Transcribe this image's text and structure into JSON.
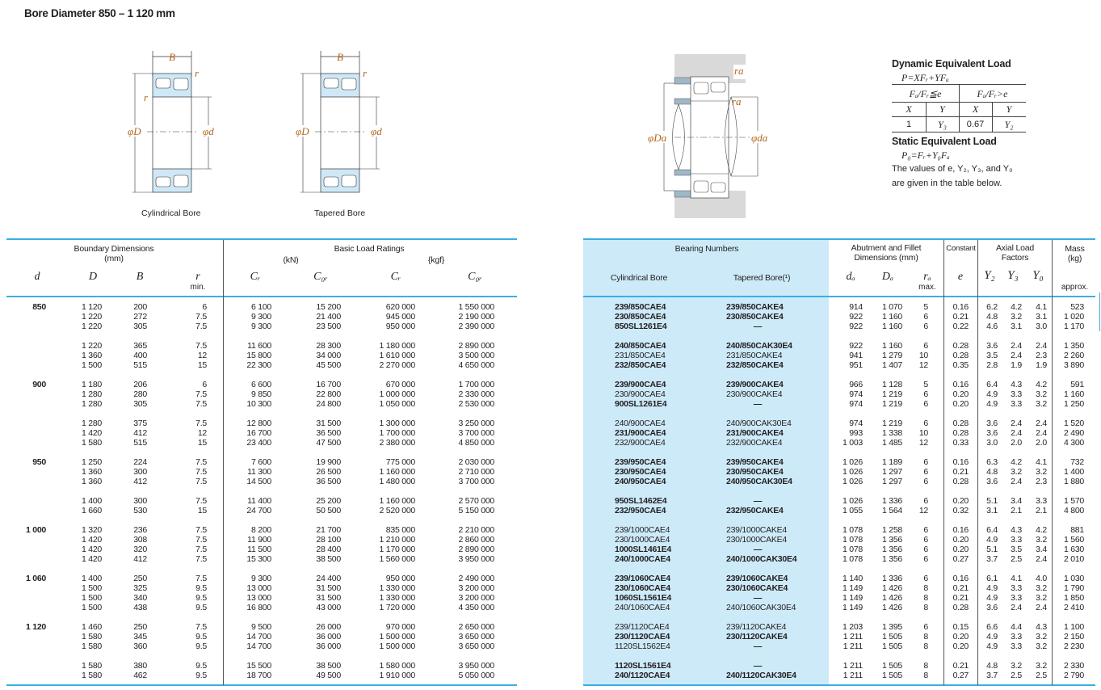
{
  "page_title": "Bore Diameter  850 – 1 120 mm",
  "figures": {
    "cylindrical": {
      "caption": "Cylindrical Bore",
      "B": "B",
      "r": "r",
      "D": "φD",
      "d": "φd"
    },
    "tapered": {
      "caption": "Tapered Bore",
      "B": "B",
      "r": "r",
      "D": "φD",
      "d": "φd"
    },
    "mounting": {
      "Da": "φDa",
      "da": "φda",
      "ra": "ra"
    }
  },
  "load_box": {
    "dynamic_title": "Dynamic Equivalent Load",
    "dynamic_formula": "P=XFᵣ+YFₐ",
    "cond1": "Fₐ/Fᵣ≦e",
    "cond2": "Fₐ/Fᵣ>e",
    "x1": "X",
    "y1": "Y",
    "x2": "X",
    "y2": "Y",
    "v_x1": "1",
    "v_y1": "Y₃",
    "v_x2": "0.67",
    "v_y2": "Y₂",
    "static_title": "Static Equivalent Load",
    "static_formula": "P₀=Fᵣ+Y₀Fₐ",
    "note1": "The values of e, Y₂, Y₃, and Y₀",
    "note2": "are given in the table below."
  },
  "left_header": {
    "boundary": "Boundary Dimensions",
    "boundary_unit": "(mm)",
    "ratings": "Basic Load Ratings",
    "kn": "(kN)",
    "kgf": "{kgf}",
    "d": "d",
    "D": "D",
    "B": "B",
    "r": "r",
    "r_min": "min.",
    "Cr1": "Cᵣ",
    "C0r1": "C₀ᵣ",
    "Cr2": "Cᵣ",
    "C0r2": "C₀ᵣ"
  },
  "right_header": {
    "bearing_numbers": "Bearing Numbers",
    "cyl": "Cylindrical Bore",
    "tap": "Tapered Bore(¹)",
    "abutment1": "Abutment and Fillet",
    "abutment2": "Dimensions (mm)",
    "constant": "Constant",
    "axial1": "Axial Load",
    "axial2": "Factors",
    "mass1": "Mass",
    "mass2": "(kg)",
    "da": "dₐ",
    "Da": "Dₐ",
    "ra": "rₐ",
    "ra_max": "max.",
    "e": "e",
    "Y2": "Y₂",
    "Y3": "Y₃",
    "Y0": "Y₀",
    "approx": "approx."
  },
  "groups": [
    {
      "d": "850",
      "subgroups": [
        [
          {
            "D": "1 120",
            "B": "200",
            "r": "6",
            "Cr": "6 100",
            "C0r": "15 200",
            "Cr_kgf": "620 000",
            "C0r_kgf": "1 550 000",
            "cyl": "239/850CAE4",
            "tap": "239/850CAKE4",
            "bold": true,
            "da": "914",
            "Da": "1 070",
            "ra": "5",
            "e": "0.16",
            "Y2": "6.2",
            "Y3": "4.2",
            "Y0": "4.1",
            "mass": "523"
          },
          {
            "D": "1 220",
            "B": "272",
            "r": "7.5",
            "Cr": "9 300",
            "C0r": "21 400",
            "Cr_kgf": "945 000",
            "C0r_kgf": "2 190 000",
            "cyl": "230/850CAE4",
            "tap": "230/850CAKE4",
            "bold": true,
            "da": "922",
            "Da": "1 160",
            "ra": "6",
            "e": "0.21",
            "Y2": "4.8",
            "Y3": "3.2",
            "Y0": "3.1",
            "mass": "1 020"
          },
          {
            "D": "1 220",
            "B": "305",
            "r": "7.5",
            "Cr": "9 300",
            "C0r": "23 500",
            "Cr_kgf": "950 000",
            "C0r_kgf": "2 390 000",
            "cyl": "850SL1261E4",
            "tap": "—",
            "bold": true,
            "da": "922",
            "Da": "1 160",
            "ra": "6",
            "e": "0.22",
            "Y2": "4.6",
            "Y3": "3.1",
            "Y0": "3.0",
            "mass": "1 170"
          }
        ],
        [
          {
            "D": "1 220",
            "B": "365",
            "r": "7.5",
            "Cr": "11 600",
            "C0r": "28 300",
            "Cr_kgf": "1 180 000",
            "C0r_kgf": "2 890 000",
            "cyl": "240/850CAE4",
            "tap": "240/850CAK30E4",
            "bold": true,
            "da": "922",
            "Da": "1 160",
            "ra": "6",
            "e": "0.28",
            "Y2": "3.6",
            "Y3": "2.4",
            "Y0": "2.4",
            "mass": "1 350"
          },
          {
            "D": "1 360",
            "B": "400",
            "r": "12",
            "Cr": "15 800",
            "C0r": "34 000",
            "Cr_kgf": "1 610 000",
            "C0r_kgf": "3 500 000",
            "cyl": "231/850CAE4",
            "tap": "231/850CAKE4",
            "bold": false,
            "da": "941",
            "Da": "1 279",
            "ra": "10",
            "e": "0.28",
            "Y2": "3.5",
            "Y3": "2.4",
            "Y0": "2.3",
            "mass": "2 260"
          },
          {
            "D": "1 500",
            "B": "515",
            "r": "15",
            "Cr": "22 300",
            "C0r": "45 500",
            "Cr_kgf": "2 270 000",
            "C0r_kgf": "4 650 000",
            "cyl": "232/850CAE4",
            "tap": "232/850CAKE4",
            "bold": true,
            "da": "951",
            "Da": "1 407",
            "ra": "12",
            "e": "0.35",
            "Y2": "2.8",
            "Y3": "1.9",
            "Y0": "1.9",
            "mass": "3 890"
          }
        ]
      ]
    },
    {
      "d": "900",
      "subgroups": [
        [
          {
            "D": "1 180",
            "B": "206",
            "r": "6",
            "Cr": "6 600",
            "C0r": "16 700",
            "Cr_kgf": "670 000",
            "C0r_kgf": "1 700 000",
            "cyl": "239/900CAE4",
            "tap": "239/900CAKE4",
            "bold": true,
            "da": "966",
            "Da": "1 128",
            "ra": "5",
            "e": "0.16",
            "Y2": "6.4",
            "Y3": "4.3",
            "Y0": "4.2",
            "mass": "591"
          },
          {
            "D": "1 280",
            "B": "280",
            "r": "7.5",
            "Cr": "9 850",
            "C0r": "22 800",
            "Cr_kgf": "1 000 000",
            "C0r_kgf": "2 330 000",
            "cyl": "230/900CAE4",
            "tap": "230/900CAKE4",
            "bold": false,
            "da": "974",
            "Da": "1 219",
            "ra": "6",
            "e": "0.20",
            "Y2": "4.9",
            "Y3": "3.3",
            "Y0": "3.2",
            "mass": "1 160"
          },
          {
            "D": "1 280",
            "B": "305",
            "r": "7.5",
            "Cr": "10 300",
            "C0r": "24 800",
            "Cr_kgf": "1 050 000",
            "C0r_kgf": "2 530 000",
            "cyl": "900SL1261E4",
            "tap": "—",
            "bold": true,
            "da": "974",
            "Da": "1 219",
            "ra": "6",
            "e": "0.20",
            "Y2": "4.9",
            "Y3": "3.3",
            "Y0": "3.2",
            "mass": "1 250"
          }
        ],
        [
          {
            "D": "1 280",
            "B": "375",
            "r": "7.5",
            "Cr": "12 800",
            "C0r": "31 500",
            "Cr_kgf": "1 300 000",
            "C0r_kgf": "3 250 000",
            "cyl": "240/900CAE4",
            "tap": "240/900CAK30E4",
            "bold": false,
            "da": "974",
            "Da": "1 219",
            "ra": "6",
            "e": "0.28",
            "Y2": "3.6",
            "Y3": "2.4",
            "Y0": "2.4",
            "mass": "1 520"
          },
          {
            "D": "1 420",
            "B": "412",
            "r": "12",
            "Cr": "16 700",
            "C0r": "36 500",
            "Cr_kgf": "1 700 000",
            "C0r_kgf": "3 700 000",
            "cyl": "231/900CAE4",
            "tap": "231/900CAKE4",
            "bold": true,
            "da": "993",
            "Da": "1 338",
            "ra": "10",
            "e": "0.28",
            "Y2": "3.6",
            "Y3": "2.4",
            "Y0": "2.4",
            "mass": "2 490"
          },
          {
            "D": "1 580",
            "B": "515",
            "r": "15",
            "Cr": "23 400",
            "C0r": "47 500",
            "Cr_kgf": "2 380 000",
            "C0r_kgf": "4 850 000",
            "cyl": "232/900CAE4",
            "tap": "232/900CAKE4",
            "bold": false,
            "da": "1 003",
            "Da": "1 485",
            "ra": "12",
            "e": "0.33",
            "Y2": "3.0",
            "Y3": "2.0",
            "Y0": "2.0",
            "mass": "4 300"
          }
        ]
      ]
    },
    {
      "d": "950",
      "subgroups": [
        [
          {
            "D": "1 250",
            "B": "224",
            "r": "7.5",
            "Cr": "7 600",
            "C0r": "19 900",
            "Cr_kgf": "775 000",
            "C0r_kgf": "2 030 000",
            "cyl": "239/950CAE4",
            "tap": "239/950CAKE4",
            "bold": true,
            "da": "1 026",
            "Da": "1 189",
            "ra": "6",
            "e": "0.16",
            "Y2": "6.3",
            "Y3": "4.2",
            "Y0": "4.1",
            "mass": "732"
          },
          {
            "D": "1 360",
            "B": "300",
            "r": "7.5",
            "Cr": "11 300",
            "C0r": "26 500",
            "Cr_kgf": "1 160 000",
            "C0r_kgf": "2 710 000",
            "cyl": "230/950CAE4",
            "tap": "230/950CAKE4",
            "bold": true,
            "da": "1 026",
            "Da": "1 297",
            "ra": "6",
            "e": "0.21",
            "Y2": "4.8",
            "Y3": "3.2",
            "Y0": "3.2",
            "mass": "1 400"
          },
          {
            "D": "1 360",
            "B": "412",
            "r": "7.5",
            "Cr": "14 500",
            "C0r": "36 500",
            "Cr_kgf": "1 480 000",
            "C0r_kgf": "3 700 000",
            "cyl": "240/950CAE4",
            "tap": "240/950CAK30E4",
            "bold": true,
            "da": "1 026",
            "Da": "1 297",
            "ra": "6",
            "e": "0.28",
            "Y2": "3.6",
            "Y3": "2.4",
            "Y0": "2.3",
            "mass": "1 880"
          }
        ],
        [
          {
            "D": "1 400",
            "B": "300",
            "r": "7.5",
            "Cr": "11 400",
            "C0r": "25 200",
            "Cr_kgf": "1 160 000",
            "C0r_kgf": "2 570 000",
            "cyl": "950SL1462E4",
            "tap": "—",
            "bold": true,
            "da": "1 026",
            "Da": "1 336",
            "ra": "6",
            "e": "0.20",
            "Y2": "5.1",
            "Y3": "3.4",
            "Y0": "3.3",
            "mass": "1 570"
          },
          {
            "D": "1 660",
            "B": "530",
            "r": "15",
            "Cr": "24 700",
            "C0r": "50 500",
            "Cr_kgf": "2 520 000",
            "C0r_kgf": "5 150 000",
            "cyl": "232/950CAE4",
            "tap": "232/950CAKE4",
            "bold": true,
            "da": "1 055",
            "Da": "1 564",
            "ra": "12",
            "e": "0.32",
            "Y2": "3.1",
            "Y3": "2.1",
            "Y0": "2.1",
            "mass": "4 800"
          }
        ]
      ]
    },
    {
      "d": "1 000",
      "subgroups": [
        [
          {
            "D": "1 320",
            "B": "236",
            "r": "7.5",
            "Cr": "8 200",
            "C0r": "21 700",
            "Cr_kgf": "835 000",
            "C0r_kgf": "2 210 000",
            "cyl": "239/1000CAE4",
            "tap": "239/1000CAKE4",
            "bold": false,
            "da": "1 078",
            "Da": "1 258",
            "ra": "6",
            "e": "0.16",
            "Y2": "6.4",
            "Y3": "4.3",
            "Y0": "4.2",
            "mass": "881"
          },
          {
            "D": "1 420",
            "B": "308",
            "r": "7.5",
            "Cr": "11 900",
            "C0r": "28 100",
            "Cr_kgf": "1 210 000",
            "C0r_kgf": "2 860 000",
            "cyl": "230/1000CAE4",
            "tap": "230/1000CAKE4",
            "bold": false,
            "da": "1 078",
            "Da": "1 356",
            "ra": "6",
            "e": "0.20",
            "Y2": "4.9",
            "Y3": "3.3",
            "Y0": "3.2",
            "mass": "1 560"
          },
          {
            "D": "1 420",
            "B": "320",
            "r": "7.5",
            "Cr": "11 500",
            "C0r": "28 400",
            "Cr_kgf": "1 170 000",
            "C0r_kgf": "2 890 000",
            "cyl": "1000SL1461E4",
            "tap": "—",
            "bold": true,
            "da": "1 078",
            "Da": "1 356",
            "ra": "6",
            "e": "0.20",
            "Y2": "5.1",
            "Y3": "3.5",
            "Y0": "3.4",
            "mass": "1 630"
          },
          {
            "D": "1 420",
            "B": "412",
            "r": "7.5",
            "Cr": "15 300",
            "C0r": "38 500",
            "Cr_kgf": "1 560 000",
            "C0r_kgf": "3 950 000",
            "cyl": "240/1000CAE4",
            "tap": "240/1000CAK30E4",
            "bold": true,
            "da": "1 078",
            "Da": "1 356",
            "ra": "6",
            "e": "0.27",
            "Y2": "3.7",
            "Y3": "2.5",
            "Y0": "2.4",
            "mass": "2 010"
          }
        ]
      ]
    },
    {
      "d": "1 060",
      "subgroups": [
        [
          {
            "D": "1 400",
            "B": "250",
            "r": "7.5",
            "Cr": "9 300",
            "C0r": "24 400",
            "Cr_kgf": "950 000",
            "C0r_kgf": "2 490 000",
            "cyl": "239/1060CAE4",
            "tap": "239/1060CAKE4",
            "bold": true,
            "da": "1 140",
            "Da": "1 336",
            "ra": "6",
            "e": "0.16",
            "Y2": "6.1",
            "Y3": "4.1",
            "Y0": "4.0",
            "mass": "1 030"
          },
          {
            "D": "1 500",
            "B": "325",
            "r": "9.5",
            "Cr": "13 000",
            "C0r": "31 500",
            "Cr_kgf": "1 330 000",
            "C0r_kgf": "3 200 000",
            "cyl": "230/1060CAE4",
            "tap": "230/1060CAKE4",
            "bold": true,
            "da": "1 149",
            "Da": "1 426",
            "ra": "8",
            "e": "0.21",
            "Y2": "4.9",
            "Y3": "3.3",
            "Y0": "3.2",
            "mass": "1 790"
          },
          {
            "D": "1 500",
            "B": "340",
            "r": "9.5",
            "Cr": "13 000",
            "C0r": "31 500",
            "Cr_kgf": "1 330 000",
            "C0r_kgf": "3 200 000",
            "cyl": "1060SL1561E4",
            "tap": "—",
            "bold": true,
            "da": "1 149",
            "Da": "1 426",
            "ra": "8",
            "e": "0.21",
            "Y2": "4.9",
            "Y3": "3.3",
            "Y0": "3.2",
            "mass": "1 850"
          },
          {
            "D": "1 500",
            "B": "438",
            "r": "9.5",
            "Cr": "16 800",
            "C0r": "43 000",
            "Cr_kgf": "1 720 000",
            "C0r_kgf": "4 350 000",
            "cyl": "240/1060CAE4",
            "tap": "240/1060CAK30E4",
            "bold": false,
            "da": "1 149",
            "Da": "1 426",
            "ra": "8",
            "e": "0.28",
            "Y2": "3.6",
            "Y3": "2.4",
            "Y0": "2.4",
            "mass": "2 410"
          }
        ]
      ]
    },
    {
      "d": "1 120",
      "subgroups": [
        [
          {
            "D": "1 460",
            "B": "250",
            "r": "7.5",
            "Cr": "9 500",
            "C0r": "26 000",
            "Cr_kgf": "970 000",
            "C0r_kgf": "2 650 000",
            "cyl": "239/1120CAE4",
            "tap": "239/1120CAKE4",
            "bold": false,
            "da": "1 203",
            "Da": "1 395",
            "ra": "6",
            "e": "0.15",
            "Y2": "6.6",
            "Y3": "4.4",
            "Y0": "4.3",
            "mass": "1 100"
          },
          {
            "D": "1 580",
            "B": "345",
            "r": "9.5",
            "Cr": "14 700",
            "C0r": "36 000",
            "Cr_kgf": "1 500 000",
            "C0r_kgf": "3 650 000",
            "cyl": "230/1120CAE4",
            "tap": "230/1120CAKE4",
            "bold": true,
            "da": "1 211",
            "Da": "1 505",
            "ra": "8",
            "e": "0.20",
            "Y2": "4.9",
            "Y3": "3.3",
            "Y0": "3.2",
            "mass": "2 150"
          },
          {
            "D": "1 580",
            "B": "360",
            "r": "9.5",
            "Cr": "14 700",
            "C0r": "36 000",
            "Cr_kgf": "1 500 000",
            "C0r_kgf": "3 650 000",
            "cyl": "1120SL1562E4",
            "tap": "—",
            "bold": false,
            "da": "1 211",
            "Da": "1 505",
            "ra": "8",
            "e": "0.20",
            "Y2": "4.9",
            "Y3": "3.3",
            "Y0": "3.2",
            "mass": "2 230"
          }
        ],
        [
          {
            "D": "1 580",
            "B": "380",
            "r": "9.5",
            "Cr": "15 500",
            "C0r": "38 500",
            "Cr_kgf": "1 580 000",
            "C0r_kgf": "3 950 000",
            "cyl": "1120SL1561E4",
            "tap": "—",
            "bold": true,
            "da": "1 211",
            "Da": "1 505",
            "ra": "8",
            "e": "0.21",
            "Y2": "4.8",
            "Y3": "3.2",
            "Y0": "3.2",
            "mass": "2 330"
          },
          {
            "D": "1 580",
            "B": "462",
            "r": "9.5",
            "Cr": "18 700",
            "C0r": "49 500",
            "Cr_kgf": "1 910 000",
            "C0r_kgf": "5 050 000",
            "cyl": "240/1120CAE4",
            "tap": "240/1120CAK30E4",
            "bold": true,
            "da": "1 211",
            "Da": "1 505",
            "ra": "8",
            "e": "0.27",
            "Y2": "3.7",
            "Y3": "2.5",
            "Y0": "2.5",
            "mass": "2 790"
          }
        ]
      ]
    }
  ]
}
